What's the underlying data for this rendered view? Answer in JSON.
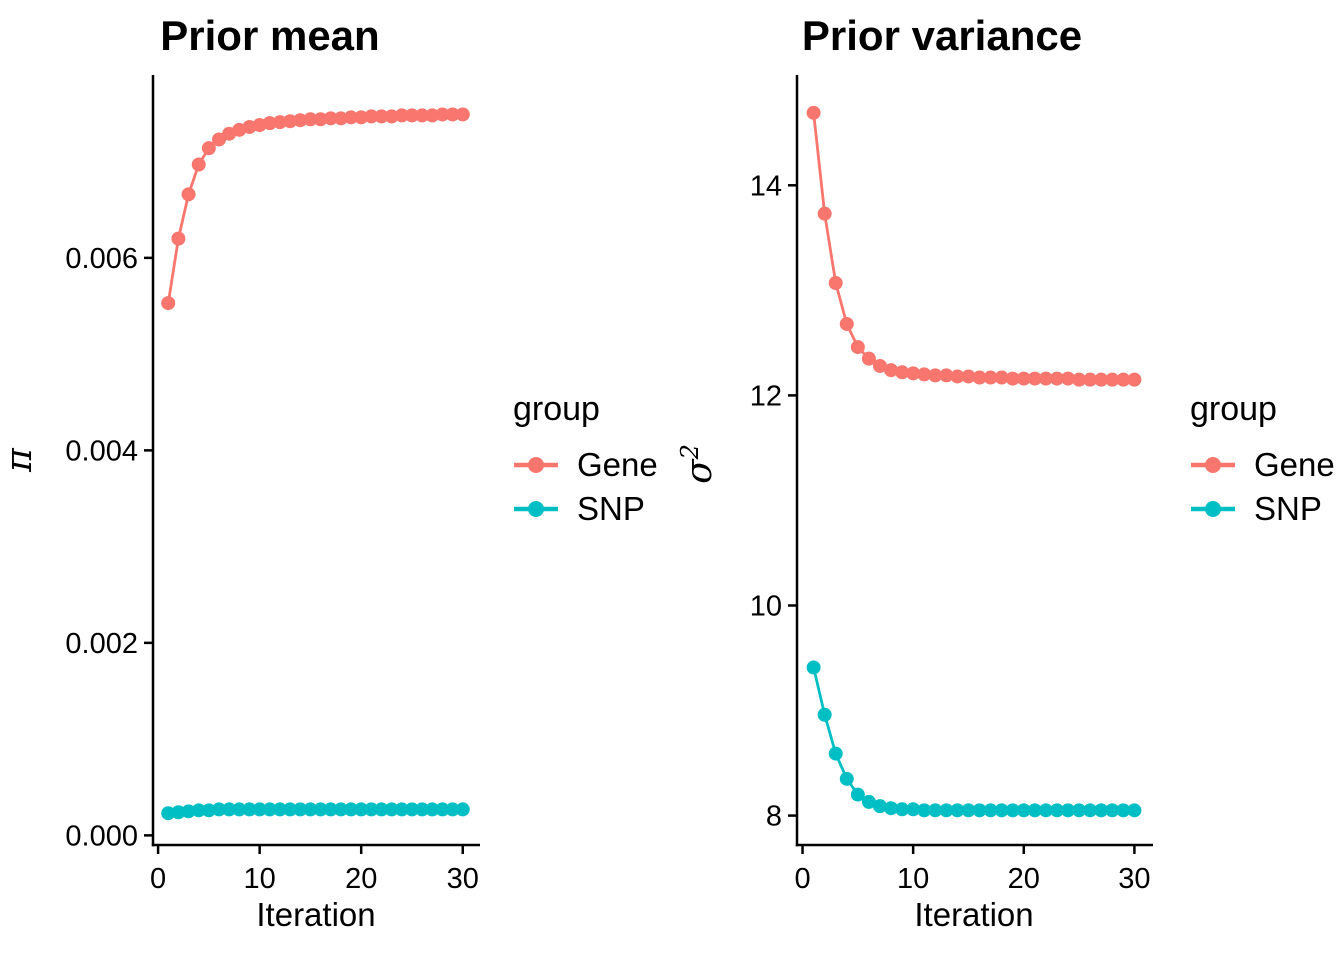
{
  "legend": {
    "title": "group",
    "items": [
      {
        "label": "Gene",
        "color": "#F8766D"
      },
      {
        "label": "SNP",
        "color": "#00BFC4"
      }
    ]
  },
  "chart_data": [
    {
      "type": "line",
      "title": "Prior mean",
      "xlabel": "Iteration",
      "ylabel": {
        "base": "π",
        "sup": ""
      },
      "grid": false,
      "legend_position": "right",
      "x": [
        1,
        2,
        3,
        4,
        5,
        6,
        7,
        8,
        9,
        10,
        11,
        12,
        13,
        14,
        15,
        16,
        17,
        18,
        19,
        20,
        21,
        22,
        23,
        24,
        25,
        26,
        27,
        28,
        29,
        30
      ],
      "xlim": [
        -0.5,
        31.5
      ],
      "ylim": [
        -0.0001,
        0.0079
      ],
      "xticks": [
        0,
        10,
        20,
        30
      ],
      "xtick_labels": [
        "0",
        "10",
        "20",
        "30"
      ],
      "yticks": [
        0,
        0.002,
        0.004,
        0.006
      ],
      "ytick_labels": [
        "0.000",
        "0.002",
        "0.004",
        "0.006"
      ],
      "series": [
        {
          "name": "Gene",
          "color": "#F8766D",
          "values": [
            0.00553,
            0.0062,
            0.00666,
            0.00697,
            0.00714,
            0.00723,
            0.00729,
            0.00733,
            0.00736,
            0.00738,
            0.0074,
            0.00741,
            0.00742,
            0.00743,
            0.00744,
            0.00744,
            0.00745,
            0.00745,
            0.00746,
            0.00746,
            0.00747,
            0.00747,
            0.00747,
            0.00748,
            0.00748,
            0.00748,
            0.00748,
            0.00749,
            0.00749,
            0.00749
          ]
        },
        {
          "name": "SNP",
          "color": "#00BFC4",
          "values": [
            0.00023,
            0.00024,
            0.00025,
            0.00026,
            0.00026,
            0.00027,
            0.00027,
            0.00027,
            0.00027,
            0.00027,
            0.00027,
            0.00027,
            0.00027,
            0.00027,
            0.00027,
            0.00027,
            0.00027,
            0.00027,
            0.00027,
            0.00027,
            0.00027,
            0.00027,
            0.00027,
            0.00027,
            0.00027,
            0.00027,
            0.00027,
            0.00027,
            0.00027,
            0.00027
          ]
        }
      ]
    },
    {
      "type": "line",
      "title": "Prior variance",
      "xlabel": "Iteration",
      "ylabel": {
        "base": "σ",
        "sup": "2"
      },
      "grid": false,
      "legend_position": "right",
      "x": [
        1,
        2,
        3,
        4,
        5,
        6,
        7,
        8,
        9,
        10,
        11,
        12,
        13,
        14,
        15,
        16,
        17,
        18,
        19,
        20,
        21,
        22,
        23,
        24,
        25,
        26,
        27,
        28,
        29,
        30
      ],
      "xlim": [
        -0.5,
        31.5
      ],
      "ylim": [
        7.72,
        15.05
      ],
      "xticks": [
        0,
        10,
        20,
        30
      ],
      "xtick_labels": [
        "0",
        "10",
        "20",
        "30"
      ],
      "yticks": [
        8,
        10,
        12,
        14
      ],
      "ytick_labels": [
        "8",
        "10",
        "12",
        "14"
      ],
      "series": [
        {
          "name": "Gene",
          "color": "#F8766D",
          "values": [
            14.69,
            13.73,
            13.07,
            12.68,
            12.46,
            12.35,
            12.28,
            12.24,
            12.22,
            12.21,
            12.2,
            12.19,
            12.19,
            12.18,
            12.18,
            12.17,
            12.17,
            12.17,
            12.16,
            12.16,
            12.16,
            12.16,
            12.16,
            12.16,
            12.15,
            12.15,
            12.15,
            12.15,
            12.15,
            12.15
          ]
        },
        {
          "name": "SNP",
          "color": "#00BFC4",
          "values": [
            9.41,
            8.96,
            8.59,
            8.35,
            8.2,
            8.13,
            8.09,
            8.07,
            8.06,
            8.06,
            8.05,
            8.05,
            8.05,
            8.05,
            8.05,
            8.05,
            8.05,
            8.05,
            8.05,
            8.05,
            8.05,
            8.05,
            8.05,
            8.05,
            8.05,
            8.05,
            8.05,
            8.05,
            8.05,
            8.05
          ]
        }
      ]
    }
  ]
}
